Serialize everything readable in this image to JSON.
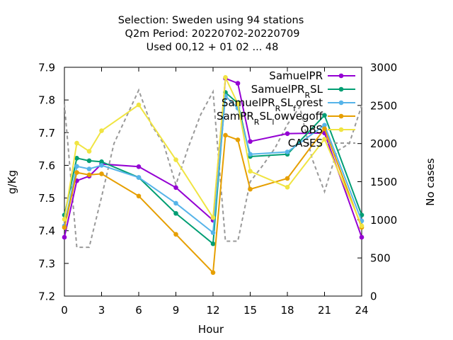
{
  "chart_data": {
    "type": "line",
    "title_lines": [
      "Selection: Sweden using    94 stations",
      "Q2m   Period: 20220702-20220709",
      "Used  00,12  + 01 02 ... 48"
    ],
    "xlabel": "Hour",
    "ylabel": "g/Kg",
    "y2label": "No cases",
    "xlim": [
      0,
      24
    ],
    "ylim": [
      7.2,
      7.9
    ],
    "y2lim": [
      0,
      3000
    ],
    "xticks": [
      "0",
      "3",
      "6",
      "9",
      "12",
      "15",
      "18",
      "21",
      "24"
    ],
    "yticks": [
      "7.2",
      "7.3",
      "7.4",
      "7.5",
      "7.6",
      "7.7",
      "7.8",
      "7.9"
    ],
    "y2ticks": [
      "0",
      "500",
      "1000",
      "1500",
      "2000",
      "2500",
      "3000"
    ],
    "legend_position": "top-right",
    "series": [
      {
        "name": "SamuelPR",
        "legend_main": "SamuelPR",
        "legend_sub": "",
        "color": "#9400d3",
        "marker": "circle",
        "x": [
          0,
          1,
          2,
          3,
          6,
          9,
          12,
          13,
          14,
          15,
          18,
          21,
          24
        ],
        "y": [
          7.38,
          7.553,
          7.567,
          7.604,
          7.596,
          7.532,
          7.432,
          7.866,
          7.851,
          7.673,
          7.697,
          7.699,
          7.38
        ]
      },
      {
        "name": "SamuelPR_RSL",
        "legend_main": "SamuelPR",
        "legend_sub": "R",
        "legend_tail": "SL",
        "color": "#009e73",
        "marker": "circle",
        "x": [
          0,
          1,
          2,
          3,
          6,
          9,
          12,
          13,
          14,
          15,
          18,
          21,
          24
        ],
        "y": [
          7.448,
          7.622,
          7.614,
          7.611,
          7.563,
          7.453,
          7.36,
          7.823,
          7.79,
          7.627,
          7.634,
          7.753,
          7.448
        ]
      },
      {
        "name": "SamuelPR_RSL_forest",
        "legend_main": "SamuelPR",
        "legend_sub": "R",
        "legend_tail": "SL",
        "legend_sub2": "f",
        "legend_tail2": "orest",
        "color": "#56b4e9",
        "marker": "circle",
        "x": [
          0,
          1,
          2,
          3,
          6,
          9,
          12,
          13,
          14,
          15,
          18,
          21,
          24
        ],
        "y": [
          7.415,
          7.597,
          7.589,
          7.6,
          7.563,
          7.484,
          7.394,
          7.812,
          7.775,
          7.634,
          7.641,
          7.723,
          7.43
        ]
      },
      {
        "name": "SamPR_RSL_lowvegoff",
        "legend_main": "SamPR",
        "legend_sub": "R",
        "legend_tail": "SL",
        "legend_sub2": "l",
        "legend_tail2": "owvegoff",
        "color": "#e69f00",
        "marker": "circle",
        "x": [
          0,
          1,
          2,
          3,
          6,
          9,
          12,
          13,
          14,
          15,
          18,
          21,
          24
        ],
        "y": [
          7.41,
          7.578,
          7.571,
          7.574,
          7.506,
          7.389,
          7.272,
          7.692,
          7.678,
          7.527,
          7.56,
          7.712,
          7.41
        ]
      },
      {
        "name": "OBS",
        "legend_main": "OBS",
        "legend_sub": "",
        "color": "#f0e442",
        "marker": "circle",
        "x": [
          0,
          1,
          2,
          3,
          6,
          9,
          12,
          13,
          14,
          15,
          18,
          21,
          24
        ],
        "y": [
          7.435,
          7.668,
          7.643,
          7.706,
          7.785,
          7.617,
          7.44,
          7.869,
          7.788,
          7.582,
          7.533,
          7.68,
          7.415
        ]
      }
    ],
    "cases": {
      "name": "CASES",
      "legend_main": "CASES",
      "legend_sub": "",
      "color": "#999999",
      "axis": "y2",
      "x": [
        0,
        1,
        2,
        3,
        4,
        5,
        6,
        7,
        8,
        9,
        10,
        11,
        12,
        13,
        14,
        15,
        16,
        17,
        18,
        19,
        20,
        21,
        22,
        23,
        24
      ],
      "y": [
        2520,
        640,
        640,
        1300,
        2000,
        2350,
        2700,
        2250,
        2000,
        1460,
        1950,
        2380,
        2680,
        720,
        720,
        1500,
        1710,
        1940,
        2250,
        2480,
        1800,
        1370,
        1900,
        2000,
        2500
      ]
    }
  }
}
